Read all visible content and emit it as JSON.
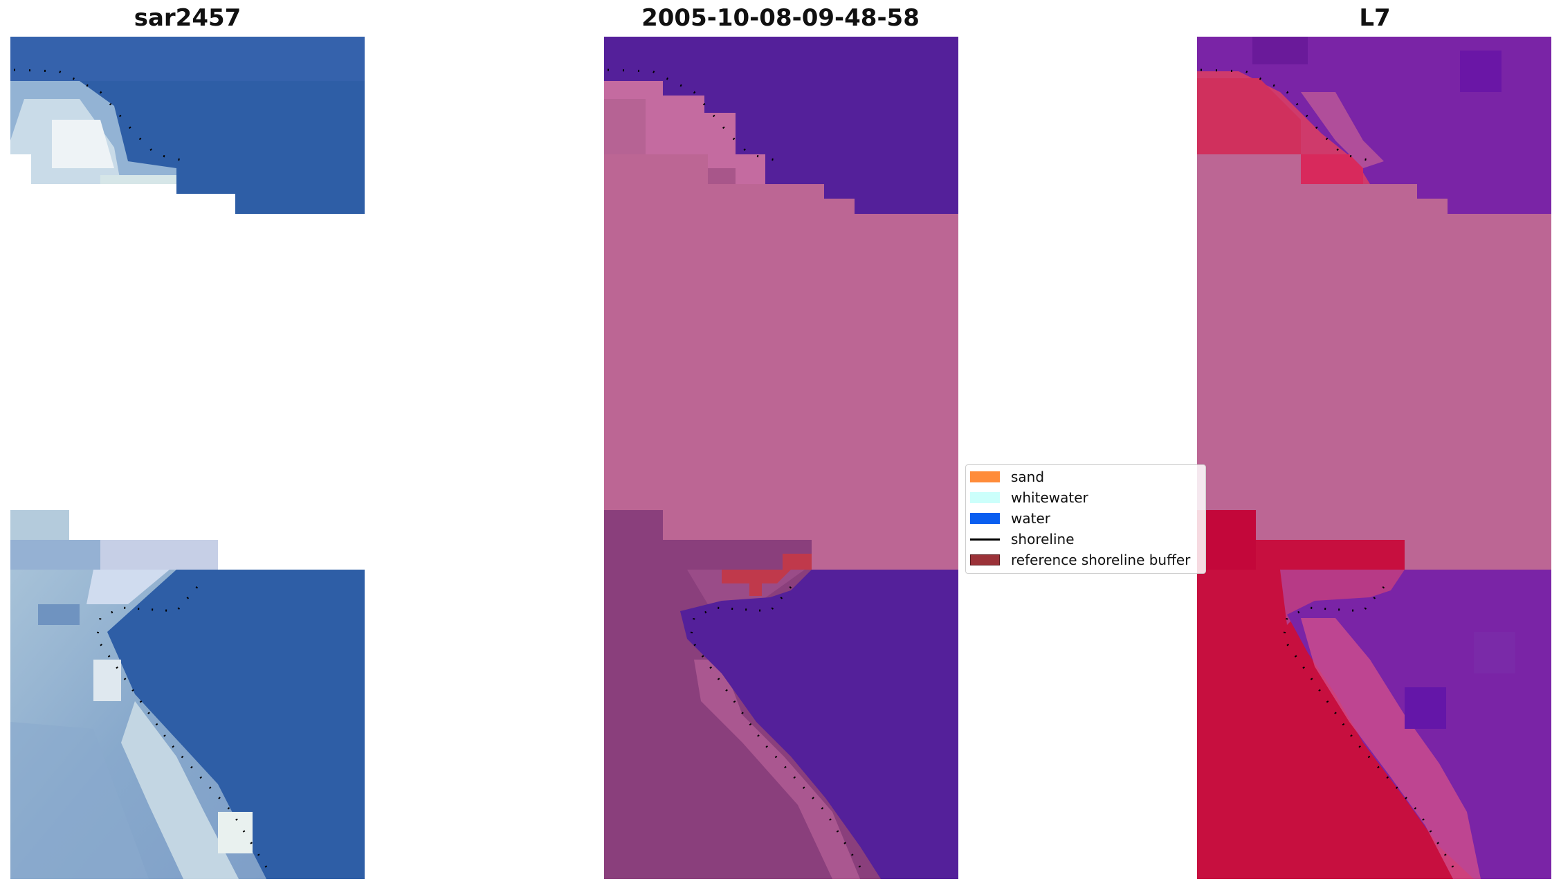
{
  "panels": {
    "rgb": {
      "title": "sar2457"
    },
    "classified": {
      "title": "2005-10-08-09-48-58"
    },
    "index": {
      "title": "L7"
    }
  },
  "legend": {
    "items": [
      {
        "label": "sand",
        "color": "#ff8c3a",
        "kind": "patch"
      },
      {
        "label": "whitewater",
        "color": "#ccfffb",
        "kind": "patch"
      },
      {
        "label": "water",
        "color": "#0a5ef0",
        "kind": "patch"
      },
      {
        "label": "shoreline",
        "color": "#000000",
        "kind": "line"
      },
      {
        "label": "reference shoreline buffer",
        "color": "#9b3238",
        "kind": "patch"
      }
    ]
  },
  "colors": {
    "water_rgb": "#2e5ea6",
    "nodata_mask": "#bc6694",
    "water_class": "#54209a",
    "land_class": "#8a3f7c",
    "buffer": "#c0394b",
    "index_low": "#c3073a",
    "index_high": "#6c1fa0"
  }
}
